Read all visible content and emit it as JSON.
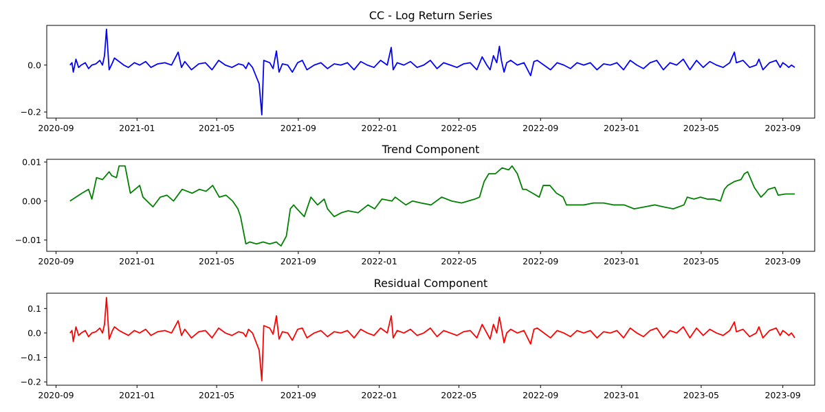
{
  "chart_data": [
    {
      "type": "line",
      "title": "CC - Log Return Series",
      "xlabel": "",
      "ylabel": "",
      "color": "#0000ff",
      "x_range": [
        "2020-08-18",
        "2023-10-19"
      ],
      "ylim": [
        -0.226,
        0.169
      ],
      "x_ticks": [
        "2020-09",
        "2021-01",
        "2021-05",
        "2021-09",
        "2022-01",
        "2022-05",
        "2022-09",
        "2023-01",
        "2023-05",
        "2023-09"
      ],
      "y_ticks": [
        0.0,
        -0.2
      ],
      "y_tick_labels": [
        "0.0",
        "−0.2"
      ],
      "x": [
        "2020-09-22",
        "2020-09-25",
        "2020-09-27",
        "2020-10-01",
        "2020-10-05",
        "2020-10-09",
        "2020-10-15",
        "2020-10-20",
        "2020-10-25",
        "2020-10-31",
        "2020-11-06",
        "2020-11-10",
        "2020-11-13",
        "2020-11-16",
        "2020-11-20",
        "2020-11-25",
        "2020-11-28",
        "2020-12-05",
        "2020-12-12",
        "2020-12-19",
        "2020-12-28",
        "2021-01-05",
        "2021-01-14",
        "2021-01-22",
        "2021-02-01",
        "2021-02-12",
        "2021-02-22",
        "2021-03-04",
        "2021-03-09",
        "2021-03-14",
        "2021-03-24",
        "2021-04-04",
        "2021-04-14",
        "2021-04-24",
        "2021-05-04",
        "2021-05-14",
        "2021-05-24",
        "2021-06-03",
        "2021-06-10",
        "2021-06-14",
        "2021-06-18",
        "2021-06-24",
        "2021-07-04",
        "2021-07-08",
        "2021-07-11",
        "2021-07-20",
        "2021-07-25",
        "2021-07-30",
        "2021-08-03",
        "2021-08-08",
        "2021-08-16",
        "2021-08-23",
        "2021-08-31",
        "2021-09-07",
        "2021-09-14",
        "2021-09-25",
        "2021-10-05",
        "2021-10-15",
        "2021-10-25",
        "2021-11-04",
        "2021-11-14",
        "2021-11-24",
        "2021-12-04",
        "2021-12-14",
        "2021-12-24",
        "2022-01-03",
        "2022-01-13",
        "2022-01-19",
        "2022-01-22",
        "2022-01-28",
        "2022-02-07",
        "2022-02-17",
        "2022-02-27",
        "2022-03-09",
        "2022-03-19",
        "2022-03-29",
        "2022-04-08",
        "2022-04-18",
        "2022-04-28",
        "2022-05-08",
        "2022-05-18",
        "2022-05-28",
        "2022-06-05",
        "2022-06-12",
        "2022-06-17",
        "2022-06-22",
        "2022-06-27",
        "2022-07-01",
        "2022-07-04",
        "2022-07-08",
        "2022-07-12",
        "2022-07-18",
        "2022-07-28",
        "2022-08-07",
        "2022-08-17",
        "2022-08-22",
        "2022-08-27",
        "2022-09-06",
        "2022-09-16",
        "2022-09-26",
        "2022-10-06",
        "2022-10-16",
        "2022-10-26",
        "2022-11-05",
        "2022-11-15",
        "2022-11-25",
        "2022-12-05",
        "2022-12-15",
        "2022-12-25",
        "2023-01-04",
        "2023-01-14",
        "2023-01-24",
        "2023-02-03",
        "2023-02-13",
        "2023-02-23",
        "2023-03-05",
        "2023-03-15",
        "2023-03-25",
        "2023-04-04",
        "2023-04-14",
        "2023-04-24",
        "2023-05-04",
        "2023-05-14",
        "2023-05-24",
        "2023-06-03",
        "2023-06-13",
        "2023-06-20",
        "2023-06-23",
        "2023-07-03",
        "2023-07-13",
        "2023-07-23",
        "2023-07-27",
        "2023-08-02",
        "2023-08-12",
        "2023-08-22",
        "2023-08-28",
        "2023-09-01",
        "2023-09-06",
        "2023-09-10",
        "2023-09-14",
        "2023-09-19"
      ],
      "values": [
        0.0,
        0.01,
        -0.03,
        0.025,
        -0.01,
        0.0,
        0.01,
        -0.015,
        0.0,
        0.005,
        0.02,
        0.0,
        0.04,
        0.153,
        -0.02,
        0.01,
        0.03,
        0.015,
        0.0,
        -0.01,
        0.01,
        0.0,
        0.015,
        -0.01,
        0.005,
        0.01,
        0.0,
        0.055,
        -0.01,
        0.015,
        -0.02,
        0.005,
        0.01,
        -0.02,
        0.02,
        0.0,
        -0.01,
        0.005,
        0.0,
        -0.015,
        0.01,
        -0.01,
        -0.08,
        -0.212,
        0.02,
        0.01,
        -0.015,
        0.06,
        -0.03,
        0.005,
        0.0,
        -0.03,
        0.01,
        0.02,
        -0.02,
        0.0,
        0.01,
        -0.015,
        0.005,
        0.0,
        0.01,
        -0.02,
        0.015,
        0.0,
        -0.01,
        0.02,
        0.0,
        0.075,
        -0.02,
        0.01,
        0.0,
        0.015,
        -0.01,
        0.0,
        0.02,
        -0.015,
        0.01,
        0.0,
        -0.01,
        0.005,
        0.01,
        -0.02,
        0.035,
        0.0,
        -0.02,
        0.04,
        0.01,
        0.08,
        0.02,
        -0.03,
        0.01,
        0.02,
        0.0,
        0.01,
        -0.045,
        0.015,
        0.02,
        0.0,
        -0.02,
        0.01,
        0.0,
        -0.015,
        0.01,
        0.0,
        0.01,
        -0.02,
        0.005,
        0.0,
        0.01,
        -0.02,
        0.02,
        0.0,
        -0.015,
        0.01,
        0.02,
        -0.02,
        0.01,
        0.0,
        0.025,
        -0.02,
        0.02,
        -0.01,
        0.015,
        0.0,
        -0.01,
        0.01,
        0.055,
        0.01,
        0.02,
        -0.01,
        0.0,
        0.025,
        -0.02,
        0.01,
        0.02,
        -0.01,
        0.01,
        0.0,
        -0.01,
        0.0,
        -0.01
      ]
    },
    {
      "type": "line",
      "title": "Trend Component",
      "xlabel": "",
      "ylabel": "",
      "color": "#008000",
      "x_range": [
        "2020-08-18",
        "2023-10-19"
      ],
      "ylim": [
        -0.0129,
        0.0107
      ],
      "x_ticks": [
        "2020-09",
        "2021-01",
        "2021-05",
        "2021-09",
        "2022-01",
        "2022-05",
        "2022-09",
        "2023-01",
        "2023-05",
        "2023-09"
      ],
      "y_ticks": [
        0.01,
        0.0,
        -0.01
      ],
      "y_tick_labels": [
        "0.01",
        "0.00",
        "−0.01"
      ],
      "x": [
        "2020-09-22",
        "2020-10-10",
        "2020-10-20",
        "2020-10-25",
        "2020-11-01",
        "2020-11-10",
        "2020-11-20",
        "2020-11-24",
        "2020-12-01",
        "2020-12-05",
        "2020-12-14",
        "2020-12-22",
        "2021-01-05",
        "2021-01-10",
        "2021-01-25",
        "2021-02-05",
        "2021-02-15",
        "2021-02-25",
        "2021-03-10",
        "2021-03-25",
        "2021-04-05",
        "2021-04-15",
        "2021-04-25",
        "2021-05-05",
        "2021-05-15",
        "2021-05-25",
        "2021-06-02",
        "2021-06-06",
        "2021-06-14",
        "2021-06-20",
        "2021-06-30",
        "2021-07-10",
        "2021-07-20",
        "2021-07-30",
        "2021-08-02",
        "2021-08-06",
        "2021-08-14",
        "2021-08-20",
        "2021-08-25",
        "2021-08-30",
        "2021-09-10",
        "2021-09-20",
        "2021-09-30",
        "2021-10-10",
        "2021-10-15",
        "2021-10-25",
        "2021-11-05",
        "2021-11-15",
        "2021-11-30",
        "2021-12-15",
        "2021-12-25",
        "2022-01-05",
        "2022-01-20",
        "2022-01-25",
        "2022-02-10",
        "2022-02-20",
        "2022-03-05",
        "2022-03-20",
        "2022-04-05",
        "2022-04-20",
        "2022-05-05",
        "2022-05-15",
        "2022-05-25",
        "2022-06-01",
        "2022-06-08",
        "2022-06-15",
        "2022-06-25",
        "2022-07-05",
        "2022-07-15",
        "2022-07-20",
        "2022-07-28",
        "2022-08-05",
        "2022-08-10",
        "2022-08-20",
        "2022-08-30",
        "2022-09-05",
        "2022-09-15",
        "2022-09-25",
        "2022-10-05",
        "2022-10-10",
        "2022-10-20",
        "2022-11-05",
        "2022-11-20",
        "2022-12-05",
        "2022-12-20",
        "2023-01-05",
        "2023-01-20",
        "2023-02-05",
        "2023-02-20",
        "2023-03-05",
        "2023-03-20",
        "2023-04-05",
        "2023-04-10",
        "2023-04-20",
        "2023-04-30",
        "2023-05-10",
        "2023-05-20",
        "2023-05-30",
        "2023-06-05",
        "2023-06-10",
        "2023-06-20",
        "2023-06-30",
        "2023-07-05",
        "2023-07-10",
        "2023-07-20",
        "2023-07-30",
        "2023-08-05",
        "2023-08-10",
        "2023-08-20",
        "2023-08-25",
        "2023-09-05",
        "2023-09-19"
      ],
      "values": [
        0.0,
        0.002,
        0.003,
        0.0005,
        0.006,
        0.0055,
        0.0075,
        0.0065,
        0.006,
        0.009,
        0.009,
        0.002,
        0.004,
        0.001,
        -0.0015,
        0.001,
        0.0015,
        0.0,
        0.003,
        0.002,
        0.003,
        0.0025,
        0.004,
        0.001,
        0.0015,
        0.0,
        -0.002,
        -0.004,
        -0.011,
        -0.0105,
        -0.011,
        -0.0105,
        -0.011,
        -0.0105,
        -0.011,
        -0.0115,
        -0.009,
        -0.002,
        -0.001,
        -0.002,
        -0.004,
        0.001,
        -0.001,
        0.0005,
        -0.002,
        -0.004,
        -0.003,
        -0.0025,
        -0.003,
        -0.001,
        -0.002,
        0.0005,
        0.0,
        0.001,
        -0.001,
        0.0,
        -0.0005,
        -0.001,
        0.001,
        0.0,
        -0.0005,
        0.0,
        0.0005,
        0.001,
        0.005,
        0.007,
        0.007,
        0.0085,
        0.008,
        0.009,
        0.007,
        0.003,
        0.003,
        0.002,
        0.001,
        0.004,
        0.004,
        0.002,
        0.001,
        -0.001,
        -0.001,
        -0.001,
        -0.0005,
        -0.0005,
        -0.001,
        -0.001,
        -0.002,
        -0.0015,
        -0.001,
        -0.0015,
        -0.002,
        -0.001,
        0.001,
        0.0005,
        0.001,
        0.0005,
        0.0005,
        0.0,
        0.003,
        0.004,
        0.005,
        0.0055,
        0.007,
        0.0075,
        0.0035,
        0.001,
        0.002,
        0.003,
        0.0035,
        0.0015,
        0.0018,
        0.0018
      ]
    },
    {
      "type": "line",
      "title": "Residual Component",
      "xlabel": "",
      "ylabel": "",
      "color": "#ff0000",
      "x_range": [
        "2020-08-18",
        "2023-10-19"
      ],
      "ylim": [
        -0.2135,
        0.1625
      ],
      "x_ticks": [
        "2020-09",
        "2021-01",
        "2021-05",
        "2021-09",
        "2022-01",
        "2022-05",
        "2022-09",
        "2023-01",
        "2023-05",
        "2023-09"
      ],
      "y_ticks": [
        0.1,
        0.0,
        -0.1,
        -0.2
      ],
      "y_tick_labels": [
        "0.1",
        "0.0",
        "−0.1",
        "−0.2"
      ],
      "x": [
        "2020-09-22",
        "2020-09-25",
        "2020-09-27",
        "2020-10-01",
        "2020-10-05",
        "2020-10-09",
        "2020-10-15",
        "2020-10-20",
        "2020-10-25",
        "2020-10-31",
        "2020-11-06",
        "2020-11-10",
        "2020-11-13",
        "2020-11-16",
        "2020-11-20",
        "2020-11-25",
        "2020-11-28",
        "2020-12-05",
        "2020-12-12",
        "2020-12-19",
        "2020-12-28",
        "2021-01-05",
        "2021-01-14",
        "2021-01-22",
        "2021-02-01",
        "2021-02-12",
        "2021-02-22",
        "2021-03-04",
        "2021-03-09",
        "2021-03-14",
        "2021-03-24",
        "2021-04-04",
        "2021-04-14",
        "2021-04-24",
        "2021-05-04",
        "2021-05-14",
        "2021-05-24",
        "2021-06-03",
        "2021-06-10",
        "2021-06-14",
        "2021-06-18",
        "2021-06-24",
        "2021-07-04",
        "2021-07-08",
        "2021-07-11",
        "2021-07-20",
        "2021-07-25",
        "2021-07-30",
        "2021-08-03",
        "2021-08-08",
        "2021-08-16",
        "2021-08-23",
        "2021-08-31",
        "2021-09-07",
        "2021-09-14",
        "2021-09-25",
        "2021-10-05",
        "2021-10-15",
        "2021-10-25",
        "2021-11-04",
        "2021-11-14",
        "2021-11-24",
        "2021-12-04",
        "2021-12-14",
        "2021-12-24",
        "2022-01-03",
        "2022-01-13",
        "2022-01-19",
        "2022-01-22",
        "2022-01-28",
        "2022-02-07",
        "2022-02-17",
        "2022-02-27",
        "2022-03-09",
        "2022-03-19",
        "2022-03-29",
        "2022-04-08",
        "2022-04-18",
        "2022-04-28",
        "2022-05-08",
        "2022-05-18",
        "2022-05-28",
        "2022-06-05",
        "2022-06-12",
        "2022-06-17",
        "2022-06-22",
        "2022-06-27",
        "2022-07-01",
        "2022-07-04",
        "2022-07-08",
        "2022-07-12",
        "2022-07-18",
        "2022-07-28",
        "2022-08-07",
        "2022-08-17",
        "2022-08-22",
        "2022-08-27",
        "2022-09-06",
        "2022-09-16",
        "2022-09-26",
        "2022-10-06",
        "2022-10-16",
        "2022-10-26",
        "2022-11-05",
        "2022-11-15",
        "2022-11-25",
        "2022-12-05",
        "2022-12-15",
        "2022-12-25",
        "2023-01-04",
        "2023-01-14",
        "2023-01-24",
        "2023-02-03",
        "2023-02-13",
        "2023-02-23",
        "2023-03-05",
        "2023-03-15",
        "2023-03-25",
        "2023-04-04",
        "2023-04-14",
        "2023-04-24",
        "2023-05-04",
        "2023-05-14",
        "2023-05-24",
        "2023-06-03",
        "2023-06-13",
        "2023-06-20",
        "2023-06-23",
        "2023-07-03",
        "2023-07-13",
        "2023-07-23",
        "2023-07-27",
        "2023-08-02",
        "2023-08-12",
        "2023-08-22",
        "2023-08-28",
        "2023-09-01",
        "2023-09-06",
        "2023-09-10",
        "2023-09-14",
        "2023-09-19"
      ],
      "values": [
        0.0,
        0.01,
        -0.035,
        0.025,
        -0.01,
        0.0,
        0.01,
        -0.015,
        0.0,
        0.005,
        0.02,
        0.0,
        0.035,
        0.145,
        -0.025,
        0.01,
        0.025,
        0.01,
        0.0,
        -0.01,
        0.01,
        0.0,
        0.015,
        -0.01,
        0.005,
        0.01,
        0.0,
        0.05,
        -0.01,
        0.015,
        -0.02,
        0.005,
        0.01,
        -0.02,
        0.02,
        0.0,
        -0.01,
        0.005,
        0.0,
        -0.015,
        0.015,
        0.0,
        -0.07,
        -0.195,
        0.03,
        0.02,
        -0.005,
        0.07,
        -0.025,
        0.005,
        0.0,
        -0.03,
        0.015,
        0.02,
        -0.02,
        0.0,
        0.01,
        -0.015,
        0.005,
        0.0,
        0.01,
        -0.02,
        0.015,
        0.0,
        -0.01,
        0.02,
        0.0,
        0.07,
        -0.02,
        0.01,
        0.0,
        0.015,
        -0.01,
        0.0,
        0.02,
        -0.015,
        0.01,
        0.0,
        -0.01,
        0.005,
        0.01,
        -0.02,
        0.035,
        0.0,
        -0.025,
        0.035,
        0.0,
        0.065,
        0.02,
        -0.04,
        0.0,
        0.015,
        0.0,
        0.01,
        -0.045,
        0.015,
        0.02,
        0.0,
        -0.02,
        0.01,
        0.0,
        -0.015,
        0.01,
        0.0,
        0.01,
        -0.02,
        0.005,
        0.0,
        0.01,
        -0.02,
        0.02,
        0.0,
        -0.015,
        0.01,
        0.02,
        -0.02,
        0.01,
        0.0,
        0.025,
        -0.02,
        0.02,
        -0.01,
        0.015,
        0.0,
        -0.01,
        0.01,
        0.045,
        0.005,
        0.015,
        -0.015,
        0.0,
        0.025,
        -0.02,
        0.01,
        0.02,
        -0.01,
        0.01,
        0.0,
        -0.01,
        0.0,
        -0.02
      ]
    }
  ]
}
